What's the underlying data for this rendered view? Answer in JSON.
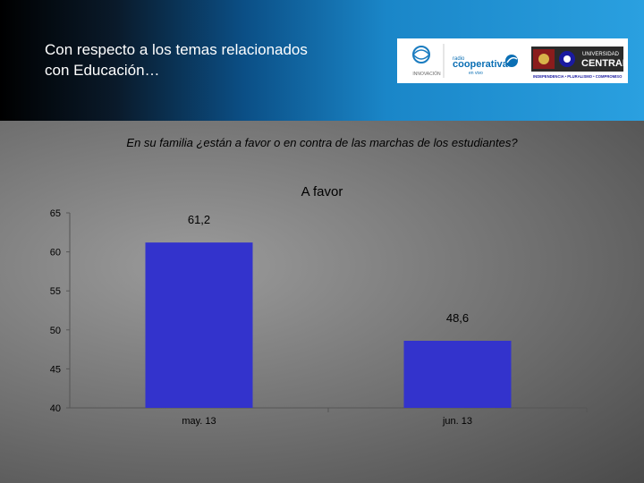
{
  "header": {
    "title_line1": "Con respecto a los temas relacionados",
    "title_line2": "con Educación…"
  },
  "logos": {
    "left_label": "INNOVACIÓN",
    "radio_small": "radio",
    "radio_brand": "cooperativa",
    "radio_sub": "en vivo",
    "univ_line1": "UNIVERSIDAD",
    "univ_line2": "CENTRAL",
    "univ_tagline": "INDEPENDENCIA • PLURALISMO • COMPROMISO",
    "colors": {
      "univ_dark": "#2b2b2b",
      "univ_red": "#8a1c1c",
      "radio_blue": "#0b6fb4"
    }
  },
  "question": "En su familia ¿están a favor o en contra de las marchas de los estudiantes?",
  "chart_data": {
    "type": "bar",
    "title": "A favor",
    "categories": [
      "may. 13",
      "jun. 13"
    ],
    "values": [
      61.2,
      48.6
    ],
    "value_labels": [
      "61,2",
      "48,6"
    ],
    "ylim": [
      40,
      65
    ],
    "yticks": [
      40,
      45,
      50,
      55,
      60,
      65
    ],
    "ytick_labels": [
      "40",
      "45",
      "50",
      "55",
      "60",
      "65"
    ],
    "bar_color": "#3333cc",
    "grid": false
  }
}
